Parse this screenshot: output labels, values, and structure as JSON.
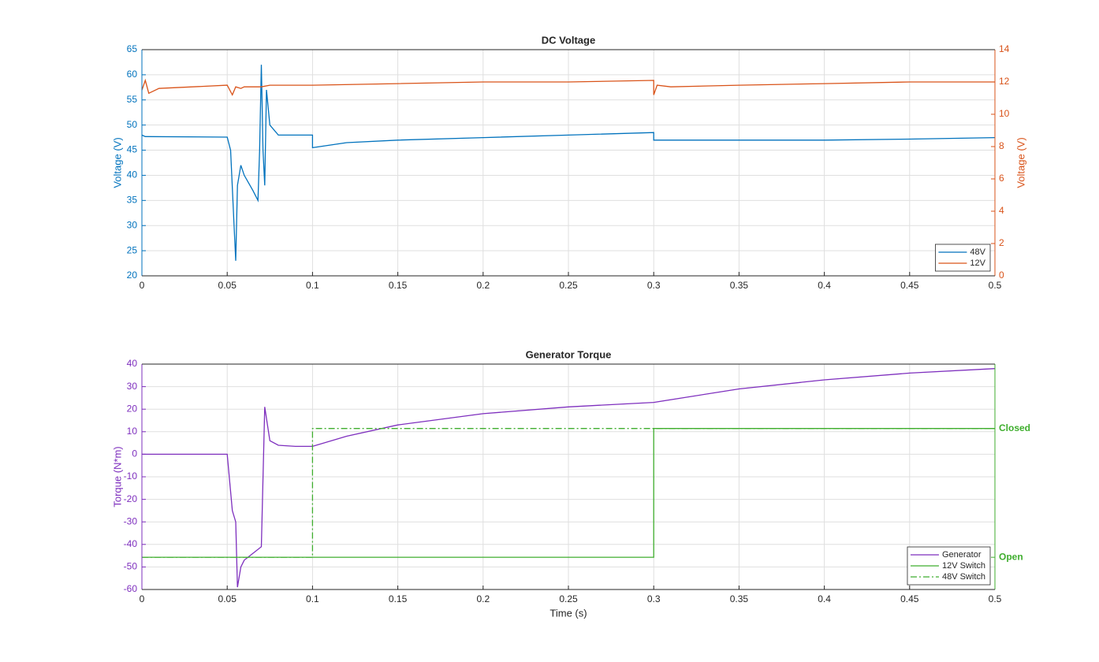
{
  "chart_data": [
    {
      "type": "line",
      "title": "DC Voltage",
      "ylabel": "Voltage (V)",
      "y2label": "Voltage (V)",
      "ycolor": "#0072bd",
      "y2color": "#d95319",
      "xlim": [
        0,
        0.5
      ],
      "xticks": [
        0,
        0.05,
        0.1,
        0.15,
        0.2,
        0.25,
        0.3,
        0.35,
        0.4,
        0.45,
        0.5
      ],
      "ylim": [
        20,
        65
      ],
      "yticks": [
        20,
        25,
        30,
        35,
        40,
        45,
        50,
        55,
        60,
        65
      ],
      "y2lim": [
        0,
        14
      ],
      "y2ticks": [
        0,
        2,
        4,
        6,
        8,
        10,
        12,
        14
      ],
      "grid": true,
      "legend": "lower right",
      "series": [
        {
          "name": "48V",
          "color": "#0072bd",
          "x": [
            0,
            0.002,
            0.05,
            0.052,
            0.054,
            0.055,
            0.056,
            0.058,
            0.06,
            0.065,
            0.068,
            0.069,
            0.07,
            0.071,
            0.072,
            0.073,
            0.075,
            0.08,
            0.1,
            0.1,
            0.12,
            0.15,
            0.2,
            0.25,
            0.3,
            0.3,
            0.35,
            0.4,
            0.45,
            0.5
          ],
          "values": [
            48,
            47.7,
            47.6,
            45,
            30,
            23,
            38,
            42,
            40,
            37,
            35,
            45,
            62,
            45,
            38,
            57,
            50,
            48,
            48,
            45.5,
            46.5,
            47,
            47.5,
            48,
            48.5,
            47,
            47,
            47,
            47.2,
            47.5
          ]
        },
        {
          "name": "12V",
          "color": "#d95319",
          "axis": "y2",
          "x": [
            0,
            0.002,
            0.004,
            0.006,
            0.01,
            0.05,
            0.053,
            0.055,
            0.058,
            0.06,
            0.07,
            0.075,
            0.1,
            0.15,
            0.2,
            0.25,
            0.3,
            0.3,
            0.302,
            0.31,
            0.35,
            0.4,
            0.45,
            0.5
          ],
          "values": [
            11.5,
            12.1,
            11.3,
            11.4,
            11.6,
            11.8,
            11.2,
            11.7,
            11.6,
            11.7,
            11.7,
            11.8,
            11.8,
            11.9,
            12,
            12,
            12.1,
            11.2,
            11.8,
            11.7,
            11.8,
            11.9,
            12,
            12
          ]
        }
      ]
    },
    {
      "type": "line",
      "title": "Generator Torque",
      "xlabel": "Time (s)",
      "ylabel": "Torque (N*m)",
      "ycolor": "#7e2fbe",
      "y2color": "#3fae2e",
      "xlim": [
        0,
        0.5
      ],
      "xticks": [
        0,
        0.05,
        0.1,
        0.15,
        0.2,
        0.25,
        0.3,
        0.35,
        0.4,
        0.45,
        0.5
      ],
      "ylim": [
        -60,
        40
      ],
      "yticks": [
        -60,
        -50,
        -40,
        -30,
        -20,
        -10,
        0,
        10,
        20,
        30,
        40
      ],
      "y2lim": [
        -0.25,
        1.5
      ],
      "y2ticks": [
        {
          "value": 0,
          "label": "Open"
        },
        {
          "value": 1,
          "label": "Closed"
        }
      ],
      "grid": true,
      "legend": "lower right",
      "series": [
        {
          "name": "Generator",
          "color": "#7e2fbe",
          "x": [
            0,
            0.05,
            0.053,
            0.055,
            0.056,
            0.058,
            0.06,
            0.065,
            0.07,
            0.072,
            0.075,
            0.08,
            0.09,
            0.1,
            0.12,
            0.15,
            0.2,
            0.25,
            0.3,
            0.35,
            0.4,
            0.45,
            0.5
          ],
          "values": [
            0,
            0,
            -25,
            -30,
            -59,
            -50,
            -47,
            -44,
            -41,
            21,
            6,
            4,
            3.5,
            3.5,
            8,
            13,
            18,
            21,
            23,
            29,
            33,
            36,
            38
          ]
        },
        {
          "name": "12V Switch",
          "color": "#3fae2e",
          "axis": "y2",
          "x": [
            0,
            0.3,
            0.3,
            0.5
          ],
          "values": [
            0,
            0,
            1,
            1
          ]
        },
        {
          "name": "48V Switch",
          "color": "#3fae2e",
          "axis": "y2",
          "linestyle": "dashdot",
          "x": [
            0,
            0.1,
            0.1,
            0.5
          ],
          "values": [
            0,
            0,
            1,
            1
          ]
        }
      ]
    }
  ]
}
